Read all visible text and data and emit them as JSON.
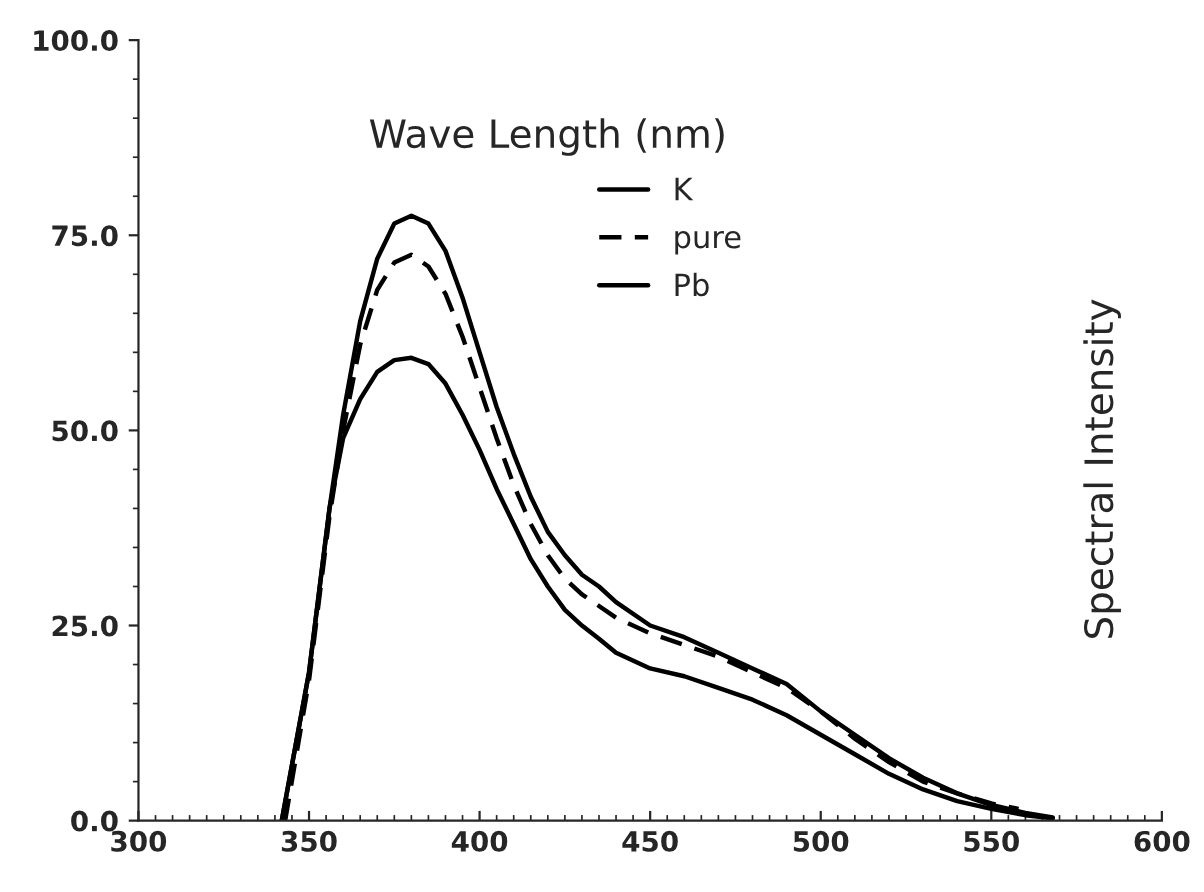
{
  "chart_data": {
    "type": "line",
    "xlabel": "Wave Length (nm)",
    "ylabel": "Spectral Intensity",
    "xlim": [
      300,
      600
    ],
    "xticks": [
      300,
      350,
      400,
      450,
      500,
      550,
      600
    ],
    "ylim": [
      0,
      100
    ],
    "yticks": [
      {
        "value": 0,
        "label": "0.0"
      },
      {
        "value": 25,
        "label": "25.0"
      },
      {
        "value": 50,
        "label": "50.0"
      },
      {
        "value": 75,
        "label": "75.0"
      },
      {
        "value": 100,
        "label": "100.0"
      }
    ],
    "grid": false,
    "legend": "top",
    "marker": "none",
    "series": [
      {
        "name": "K",
        "color": "#000000",
        "line_style": "solid",
        "x": [
          342,
          350,
          356,
          360,
          365,
          370,
          375,
          380,
          385,
          390,
          395,
          400,
          405,
          410,
          415,
          420,
          425,
          430,
          435,
          440,
          450,
          460,
          470,
          480,
          490,
          500,
          510,
          520,
          530,
          540,
          550,
          560,
          568
        ],
        "values": [
          0,
          19,
          40,
          52,
          64,
          72,
          76.5,
          77.5,
          76.5,
          73,
          67,
          60,
          53,
          47,
          41.5,
          37,
          34,
          31.5,
          30,
          28,
          25,
          23.5,
          21.5,
          19.5,
          17.5,
          14,
          11,
          8,
          5.5,
          3.5,
          2,
          1,
          0.4
        ]
      },
      {
        "name": "pure",
        "color": "#000000",
        "line_style": "dashed",
        "x": [
          343,
          350,
          356,
          360,
          365,
          370,
          375,
          380,
          385,
          390,
          395,
          400,
          405,
          410,
          415,
          420,
          425,
          430,
          435,
          440,
          450,
          460,
          470,
          480,
          490,
          500,
          510,
          520,
          530,
          540,
          550,
          558
        ],
        "values": [
          0,
          18,
          39,
          50,
          61,
          68,
          71.5,
          72.5,
          71,
          67.5,
          62,
          55.5,
          49,
          43,
          38,
          34,
          31,
          29,
          27.5,
          26,
          24,
          22.5,
          21,
          19,
          17,
          14,
          10.5,
          7.5,
          5,
          3.5,
          2.2,
          1.5
        ]
      },
      {
        "name": "Pb",
        "color": "#000000",
        "line_style": "solid",
        "x": [
          342,
          350,
          356,
          360,
          365,
          370,
          375,
          380,
          385,
          390,
          395,
          400,
          405,
          410,
          415,
          420,
          425,
          430,
          435,
          440,
          450,
          460,
          470,
          480,
          490,
          500,
          510,
          520,
          530,
          540,
          550,
          560,
          568
        ],
        "values": [
          0,
          19,
          40,
          49,
          54,
          57.5,
          59,
          59.3,
          58.5,
          56,
          52,
          47.5,
          42.5,
          38,
          33.5,
          30,
          27,
          25,
          23.3,
          21.5,
          19.5,
          18.5,
          17,
          15.5,
          13.5,
          11,
          8.5,
          6,
          4,
          2.5,
          1.5,
          0.7,
          0.3
        ]
      }
    ]
  }
}
